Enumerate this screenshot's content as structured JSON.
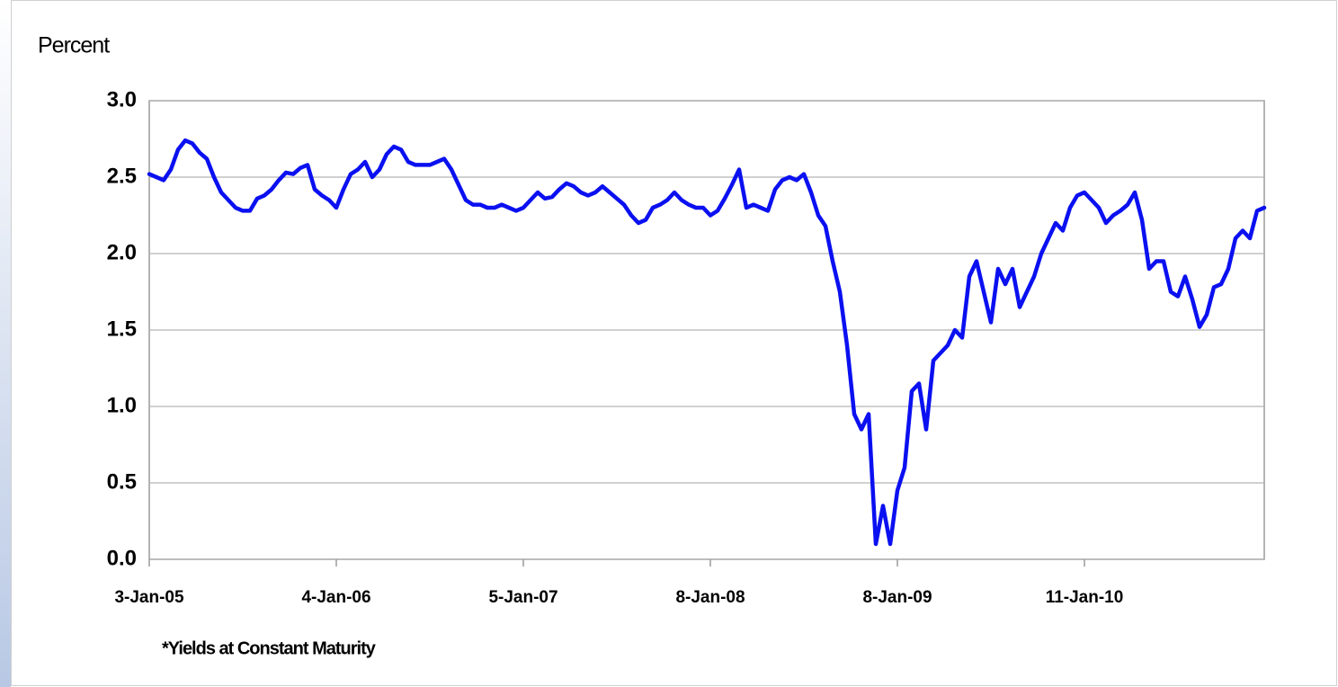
{
  "chart_data": {
    "type": "line",
    "y_label": "Percent",
    "note": "*Yields at Constant Maturity",
    "categories": [
      "3-Jan-05",
      null,
      null,
      null,
      null,
      null,
      null,
      null,
      null,
      null,
      null,
      null,
      null,
      null,
      null,
      null,
      null,
      null,
      null,
      null,
      null,
      null,
      null,
      null,
      null,
      null,
      "4-Jan-06",
      null,
      null,
      null,
      null,
      null,
      null,
      null,
      null,
      null,
      null,
      null,
      null,
      null,
      null,
      null,
      null,
      null,
      null,
      null,
      null,
      null,
      null,
      null,
      null,
      null,
      "5-Jan-07",
      null,
      null,
      null,
      null,
      null,
      null,
      null,
      null,
      null,
      null,
      null,
      null,
      null,
      null,
      null,
      null,
      null,
      null,
      null,
      null,
      null,
      null,
      null,
      null,
      null,
      "8-Jan-08",
      null,
      null,
      null,
      null,
      null,
      null,
      null,
      null,
      null,
      null,
      null,
      null,
      null,
      null,
      null,
      null,
      null,
      null,
      null,
      null,
      null,
      null,
      null,
      null,
      null,
      "8-Jan-09",
      null,
      null,
      null,
      null,
      null,
      null,
      null,
      null,
      null,
      null,
      null,
      null,
      null,
      null,
      null,
      null,
      null,
      null,
      null,
      null,
      null,
      null,
      null,
      null,
      null,
      "11-Jan-10",
      null,
      null,
      null,
      null,
      null,
      null,
      null,
      null,
      null,
      null,
      null,
      null,
      null,
      null,
      null,
      null,
      null,
      null,
      null,
      null,
      null,
      null,
      null,
      null,
      null
    ],
    "values": [
      2.52,
      2.5,
      2.48,
      2.55,
      2.68,
      2.74,
      2.72,
      2.66,
      2.62,
      2.5,
      2.4,
      2.35,
      2.3,
      2.28,
      2.28,
      2.36,
      2.38,
      2.42,
      2.48,
      2.53,
      2.52,
      2.56,
      2.58,
      2.42,
      2.38,
      2.35,
      2.3,
      2.42,
      2.52,
      2.55,
      2.6,
      2.5,
      2.55,
      2.65,
      2.7,
      2.68,
      2.6,
      2.58,
      2.58,
      2.58,
      2.6,
      2.62,
      2.55,
      2.45,
      2.35,
      2.32,
      2.32,
      2.3,
      2.3,
      2.32,
      2.3,
      2.28,
      2.3,
      2.35,
      2.4,
      2.36,
      2.37,
      2.42,
      2.46,
      2.44,
      2.4,
      2.38,
      2.4,
      2.44,
      2.4,
      2.36,
      2.32,
      2.25,
      2.2,
      2.22,
      2.3,
      2.32,
      2.35,
      2.4,
      2.35,
      2.32,
      2.3,
      2.3,
      2.25,
      2.28,
      2.36,
      2.45,
      2.55,
      2.3,
      2.32,
      2.3,
      2.28,
      2.42,
      2.48,
      2.5,
      2.48,
      2.52,
      2.4,
      2.25,
      2.18,
      1.95,
      1.75,
      1.4,
      0.95,
      0.85,
      0.95,
      0.1,
      0.35,
      0.1,
      0.45,
      0.6,
      1.1,
      1.15,
      0.85,
      1.3,
      1.35,
      1.4,
      1.5,
      1.45,
      1.85,
      1.95,
      1.75,
      1.55,
      1.9,
      1.8,
      1.9,
      1.65,
      1.75,
      1.85,
      2.0,
      2.1,
      2.2,
      2.15,
      2.3,
      2.38,
      2.4,
      2.35,
      2.3,
      2.2,
      2.25,
      2.28,
      2.32,
      2.4,
      2.22,
      1.9,
      1.95,
      1.95,
      1.75,
      1.72,
      1.85,
      1.7,
      1.52,
      1.6,
      1.78,
      1.8,
      1.9,
      2.1,
      2.15,
      2.1,
      2.28,
      2.3
    ],
    "color": "#0a10f0",
    "ylim": [
      0,
      3
    ],
    "yticks": [
      {
        "value": 0,
        "label": "0.0"
      },
      0.5,
      {
        "value": 1,
        "label": "1.0"
      },
      1.5,
      {
        "value": 2,
        "label": "2.0"
      },
      2.5,
      {
        "value": 3,
        "label": "3.0"
      }
    ],
    "grid": true
  }
}
